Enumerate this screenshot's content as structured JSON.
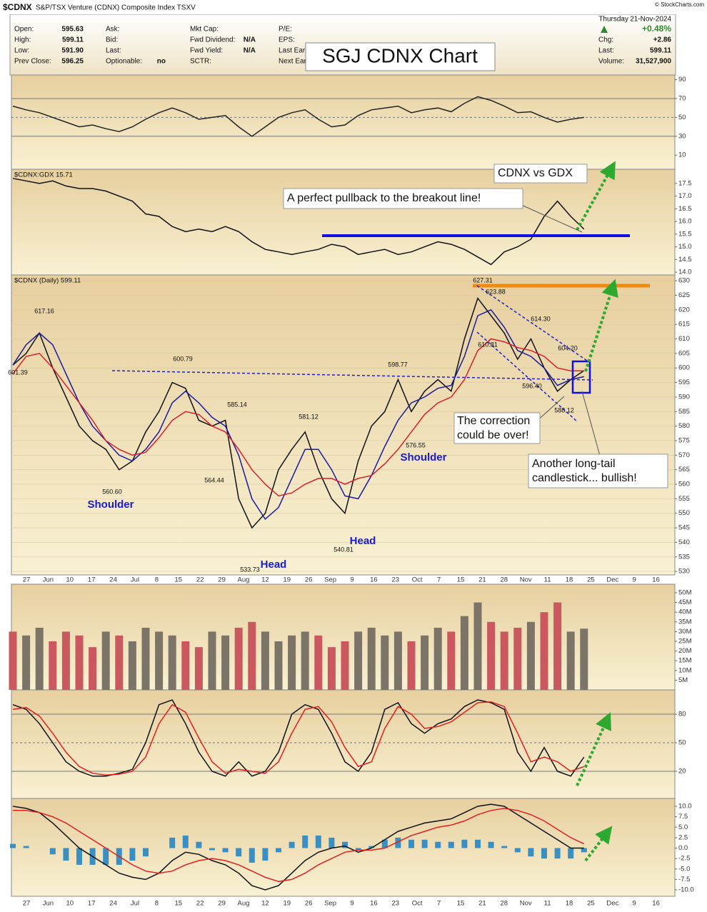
{
  "header": {
    "symbol": "$CDNX",
    "name": "S&P/TSX Venture (CDNX) Composite Index TSXV",
    "watermark": "© StockCharts.com",
    "columns": [
      [
        {
          "label": "Open:",
          "value": "595.63"
        },
        {
          "label": "High:",
          "value": "599.11"
        },
        {
          "label": "Low:",
          "value": "591.90"
        },
        {
          "label": "Prev Close:",
          "value": "596.25"
        }
      ],
      [
        {
          "label": "Ask:"
        },
        {
          "label": "Bid:"
        },
        {
          "label": "Last:"
        },
        {
          "label": "Optionable:",
          "value": "no"
        }
      ],
      [
        {
          "label": "Mkt Cap:"
        },
        {
          "label": "Fwd Dividend:",
          "value": "N/A"
        },
        {
          "label": "Fwd Yield:",
          "value": "N/A"
        },
        {
          "label": "SCTR:"
        }
      ],
      [
        {
          "label": "P/E:"
        },
        {
          "label": "EPS:"
        },
        {
          "label": "Last Ear"
        },
        {
          "label": "Next Ear"
        }
      ]
    ],
    "day": "Thursday",
    "date": "21-Nov-2024",
    "pct_change": "+0.48%",
    "right": [
      {
        "label": "Chg:",
        "value": "+2.86"
      },
      {
        "label": "Last:",
        "value": "599.11"
      },
      {
        "label": "Volume:",
        "value": "31,527,900"
      }
    ]
  },
  "title_box": "SGJ CDNX Chart",
  "x_labels": [
    "27",
    "Jun",
    "10",
    "17",
    "24",
    "Jul",
    "8",
    "15",
    "22",
    "29",
    "Aug",
    "12",
    "19",
    "26",
    "Sep",
    "9",
    "16",
    "23",
    "Oct",
    "7",
    "15",
    "21",
    "28",
    "Nov",
    "11",
    "18",
    "25",
    "Dec",
    "9",
    "16"
  ],
  "annotations": {
    "cdnx_vs_gdx": "CDNX vs GDX",
    "pullback": "A perfect pullback to the breakout line!",
    "correction": [
      "The correction",
      "could be over!"
    ],
    "longtail": [
      "Another long-tail",
      "candlestick... bullish!"
    ],
    "points": [
      "617.16",
      "601.39",
      "600.79",
      "560.60",
      "585.14",
      "564.44",
      "533.73",
      "581.12",
      "540.81",
      "598.77",
      "576.55",
      "627.31",
      "623.88",
      "610.81",
      "614.30",
      "604.20",
      "596.40",
      "588.12"
    ],
    "patterns": [
      "Shoulder",
      "Head",
      "Head",
      "Shoulder"
    ]
  },
  "chart_data": [
    {
      "type": "line",
      "ylim": [
        -5,
        95
      ],
      "yticks": [
        10,
        30,
        50,
        70,
        90
      ],
      "grid_ticks": [
        30,
        50,
        70
      ],
      "series": [
        {
          "color": "#222222",
          "values": [
            62,
            58,
            55,
            50,
            45,
            40,
            42,
            38,
            35,
            40,
            48,
            55,
            60,
            55,
            48,
            50,
            52,
            40,
            30,
            40,
            50,
            55,
            58,
            48,
            40,
            42,
            52,
            58,
            60,
            62,
            55,
            58,
            60,
            56,
            65,
            72,
            68,
            62,
            55,
            56,
            50,
            45,
            48,
            50
          ]
        }
      ]
    },
    {
      "type": "line",
      "label": "$CDNX:GDX 15.71",
      "ylim": [
        13.89,
        18.06
      ],
      "yticks": [
        {
          "value": 14,
          "label": "14.0"
        },
        14.5,
        {
          "value": 15,
          "label": "15.0"
        },
        15.5,
        {
          "value": 16,
          "label": "16.0"
        },
        16.5,
        {
          "value": 17,
          "label": "17.0"
        },
        17.5
      ],
      "series": [
        {
          "color": "#111111",
          "values": [
            17.7,
            17.6,
            17.5,
            17.6,
            17.4,
            17.3,
            17.3,
            17.2,
            17.0,
            16.8,
            16.3,
            16.2,
            15.8,
            15.6,
            15.7,
            15.6,
            15.8,
            15.6,
            15.2,
            14.9,
            14.8,
            14.7,
            14.8,
            14.9,
            15.1,
            15.0,
            14.7,
            14.8,
            14.9,
            14.7,
            14.8,
            15.0,
            15.2,
            15.1,
            14.9,
            14.6,
            14.3,
            14.8,
            15.0,
            15.3,
            16.2,
            16.8,
            16.2,
            15.7
          ]
        }
      ]
    },
    {
      "type": "line",
      "label": "$CDNX (Daily) 599.11",
      "ylim": [
        528.8,
        632
      ],
      "yticks": [
        530,
        535,
        540,
        545,
        550,
        555,
        560,
        565,
        570,
        575,
        580,
        585,
        590,
        595,
        600,
        605,
        610,
        615,
        620,
        625,
        630
      ],
      "grid": true,
      "series": [
        {
          "color": "#111111",
          "values": [
            601,
            605,
            612,
            600,
            590,
            580,
            575,
            572,
            565,
            568,
            578,
            585,
            595,
            593,
            582,
            580,
            582,
            555,
            545,
            550,
            565,
            572,
            578,
            565,
            555,
            550,
            568,
            580,
            585,
            596,
            585,
            592,
            596,
            592,
            610,
            624,
            618,
            612,
            603,
            610,
            600,
            592,
            596,
            599.11
          ]
        },
        {
          "color": "#1a1aa0",
          "values": [
            601,
            608,
            612,
            608,
            598,
            588,
            580,
            575,
            570,
            568,
            572,
            578,
            588,
            592,
            588,
            583,
            580,
            570,
            555,
            548,
            552,
            562,
            572,
            572,
            565,
            556,
            555,
            563,
            573,
            582,
            588,
            590,
            593,
            594,
            604,
            618,
            620,
            614,
            606,
            604,
            600,
            594,
            596,
            597
          ]
        },
        {
          "color": "#d8202a",
          "values": [
            598,
            604,
            605,
            600,
            594,
            588,
            582,
            575,
            572,
            570,
            571,
            576,
            582,
            585,
            584,
            580,
            578,
            572,
            565,
            560,
            556,
            557,
            560,
            562,
            562,
            560,
            562,
            563,
            567,
            572,
            578,
            584,
            588,
            590,
            596,
            606,
            610,
            609,
            607,
            606,
            604,
            600,
            599,
            599
          ]
        }
      ]
    },
    {
      "type": "bar",
      "ylim": [
        0,
        54400000
      ],
      "yticks": [
        {
          "value": 5000000,
          "label": "5M"
        },
        {
          "value": 10000000,
          "label": "10M"
        },
        {
          "value": 15000000,
          "label": "15M"
        },
        {
          "value": 20000000,
          "label": "20M"
        },
        {
          "value": 25000000,
          "label": "25M"
        },
        {
          "value": 30000000,
          "label": "30M"
        },
        {
          "value": 35000000,
          "label": "35M"
        },
        {
          "value": 40000000,
          "label": "40M"
        },
        {
          "value": 45000000,
          "label": "45M"
        },
        {
          "value": 50000000,
          "label": "50M"
        }
      ],
      "values": [
        30000000,
        28000000,
        32000000,
        25000000,
        30000000,
        28000000,
        22000000,
        30000000,
        28000000,
        25000000,
        32000000,
        30000000,
        28000000,
        25000000,
        22000000,
        30000000,
        28000000,
        32000000,
        35000000,
        30000000,
        25000000,
        28000000,
        30000000,
        28000000,
        22000000,
        25000000,
        30000000,
        32000000,
        28000000,
        30000000,
        25000000,
        28000000,
        32000000,
        30000000,
        38000000,
        45000000,
        35000000,
        30000000,
        32000000,
        35000000,
        40000000,
        45000000,
        30000000,
        31527900
      ],
      "colors": [
        "#c9595f",
        "#7d7468",
        "#7d7468",
        "#c9595f",
        "#c9595f",
        "#c9595f",
        "#c9595f",
        "#7d7468",
        "#c9595f",
        "#7d7468",
        "#7d7468",
        "#7d7468",
        "#7d7468",
        "#c9595f",
        "#c9595f",
        "#7d7468",
        "#7d7468",
        "#c9595f",
        "#c9595f",
        "#7d7468",
        "#7d7468",
        "#7d7468",
        "#7d7468",
        "#c9595f",
        "#c9595f",
        "#c9595f",
        "#7d7468",
        "#7d7468",
        "#7d7468",
        "#7d7468",
        "#c9595f",
        "#7d7468",
        "#7d7468",
        "#c9595f",
        "#7d7468",
        "#7d7468",
        "#c9595f",
        "#c9595f",
        "#c9595f",
        "#7d7468",
        "#c9595f",
        "#c9595f",
        "#7d7468",
        "#7d7468"
      ]
    },
    {
      "type": "line",
      "ylim": [
        -8.5,
        105.5
      ],
      "yticks": [
        20,
        50,
        80
      ],
      "grid_ticks": [
        20,
        50,
        80
      ],
      "series": [
        {
          "color": "#111111",
          "values": [
            90,
            85,
            70,
            50,
            30,
            20,
            15,
            15,
            18,
            22,
            50,
            90,
            95,
            70,
            40,
            20,
            15,
            30,
            15,
            20,
            40,
            80,
            90,
            85,
            60,
            30,
            20,
            40,
            85,
            92,
            70,
            60,
            70,
            75,
            88,
            95,
            92,
            85,
            40,
            20,
            45,
            20,
            15,
            35
          ]
        },
        {
          "color": "#e02020",
          "values": [
            85,
            87,
            78,
            60,
            40,
            25,
            18,
            16,
            17,
            20,
            35,
            70,
            90,
            82,
            55,
            30,
            18,
            22,
            20,
            18,
            30,
            60,
            85,
            88,
            72,
            45,
            25,
            30,
            65,
            88,
            80,
            65,
            67,
            72,
            82,
            92,
            93,
            88,
            60,
            30,
            35,
            30,
            20,
            25
          ]
        }
      ]
    },
    {
      "type": "line",
      "ylim": [
        -11.54,
        11.88
      ],
      "yticks": [
        {
          "value": -10,
          "label": "-10.0"
        },
        -7.5,
        {
          "value": -5,
          "label": "-5.0"
        },
        -2.5,
        {
          "value": 0,
          "label": "0.0"
        },
        2.5,
        {
          "value": 5,
          "label": "5.0"
        },
        7.5,
        {
          "value": 10,
          "label": "10.0"
        }
      ],
      "series": [
        {
          "type": "bar",
          "color": "#3a8fc0",
          "values": [
            1,
            0.5,
            0,
            -1.5,
            -3,
            -4,
            -4,
            -4,
            -4,
            -3,
            -2,
            0,
            2.5,
            3,
            1.5,
            -0.5,
            -1,
            -2,
            -3.5,
            -3,
            -1,
            1.5,
            3,
            3,
            2.5,
            1.5,
            -0.5,
            0.5,
            2,
            2.5,
            2,
            2,
            1.5,
            1.5,
            2,
            2,
            1.5,
            0.5,
            -1,
            -2,
            -2.5,
            -2.5,
            -2.5,
            -1
          ]
        },
        {
          "color": "#111111",
          "values": [
            10,
            9.5,
            8.5,
            6,
            3,
            0,
            -2,
            -4,
            -6,
            -7,
            -7.5,
            -6,
            -3,
            -1,
            -1.5,
            -3,
            -4,
            -6,
            -9,
            -10,
            -9,
            -6,
            -3,
            -1,
            0,
            0.5,
            -1,
            0,
            2,
            4,
            5,
            6,
            6.5,
            7,
            8.5,
            10,
            10.5,
            10,
            8,
            6,
            4,
            2,
            0,
            0
          ]
        },
        {
          "color": "#e02020",
          "values": [
            9,
            9,
            8.5,
            7.5,
            6,
            4,
            2,
            0,
            -2,
            -4,
            -5.5,
            -6,
            -5.5,
            -4,
            -3,
            -2.5,
            -3,
            -4,
            -5.5,
            -7,
            -8,
            -7.5,
            -6,
            -4,
            -2.5,
            -1,
            -0.5,
            -0.5,
            0,
            1.5,
            3,
            4,
            5,
            5.5,
            6.5,
            8,
            9,
            9.5,
            9,
            8,
            6.5,
            4.5,
            2.5,
            1
          ]
        }
      ]
    }
  ]
}
